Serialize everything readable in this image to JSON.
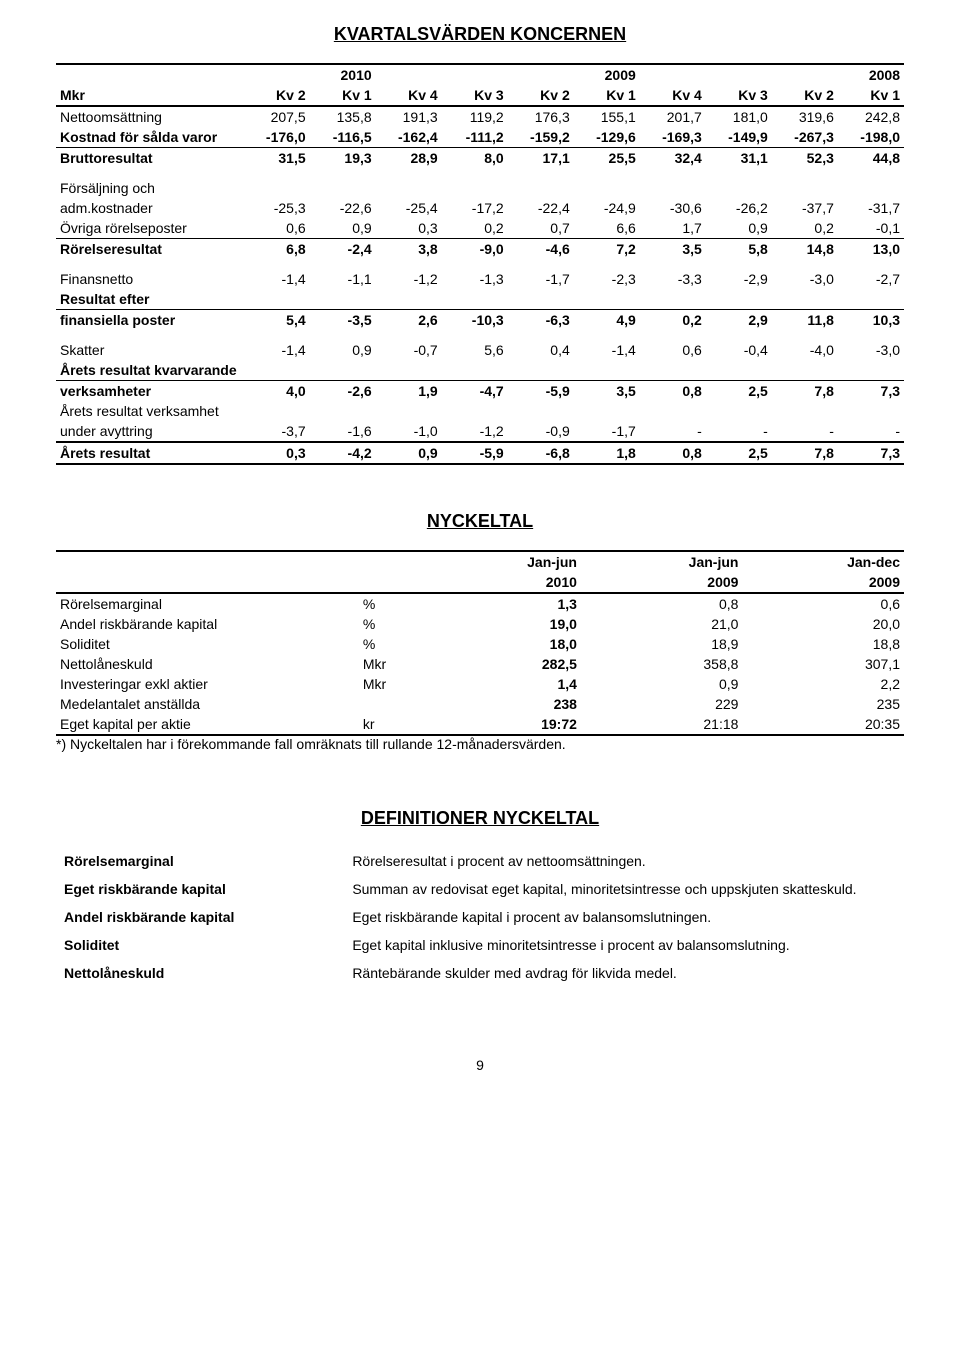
{
  "title1": "KVARTALSVÄRDEN KONCERNEN",
  "title2": "NYCKELTAL",
  "title3": "DEFINITIONER NYCKELTAL",
  "pagenum": "9",
  "t1": {
    "yearheads": [
      "2010",
      "2009",
      "2008"
    ],
    "colheads": [
      "Mkr",
      "Kv 2",
      "Kv 1",
      "Kv 4",
      "Kv 3",
      "Kv 2",
      "Kv 1",
      "Kv 4",
      "Kv 3",
      "Kv 2",
      "Kv 1"
    ],
    "rows": [
      {
        "label": "Nettoomsättning",
        "v": [
          "207,5",
          "135,8",
          "191,3",
          "119,2",
          "176,3",
          "155,1",
          "201,7",
          "181,0",
          "319,6",
          "242,8"
        ],
        "style": ""
      },
      {
        "label": "Kostnad för sålda varor",
        "v": [
          "-176,0",
          "-116,5",
          "-162,4",
          "-111,2",
          "-159,2",
          "-129,6",
          "-169,3",
          "-149,9",
          "-267,3",
          "-198,0"
        ],
        "style": "bold"
      },
      {
        "label": "Bruttoresultat",
        "v": [
          "31,5",
          "19,3",
          "28,9",
          "8,0",
          "17,1",
          "25,5",
          "32,4",
          "31,1",
          "52,3",
          "44,8"
        ],
        "style": "bold top"
      },
      {
        "label": "Försäljning och",
        "v": [
          "",
          "",
          "",
          "",
          "",
          "",
          "",
          "",
          "",
          ""
        ],
        "style": "gap"
      },
      {
        "label": "adm.kostnader",
        "v": [
          "-25,3",
          "-22,6",
          "-25,4",
          "-17,2",
          "-22,4",
          "-24,9",
          "-30,6",
          "-26,2",
          "-37,7",
          "-31,7"
        ],
        "style": ""
      },
      {
        "label": "Övriga rörelseposter",
        "v": [
          "0,6",
          "0,9",
          "0,3",
          "0,2",
          "0,7",
          "6,6",
          "1,7",
          "0,9",
          "0,2",
          "-0,1"
        ],
        "style": ""
      },
      {
        "label": "Rörelseresultat",
        "v": [
          "6,8",
          "-2,4",
          "3,8",
          "-9,0",
          "-4,6",
          "7,2",
          "3,5",
          "5,8",
          "14,8",
          "13,0"
        ],
        "style": "bold top"
      },
      {
        "label": "Finansnetto",
        "v": [
          "-1,4",
          "-1,1",
          "-1,2",
          "-1,3",
          "-1,7",
          "-2,3",
          "-3,3",
          "-2,9",
          "-3,0",
          "-2,7"
        ],
        "style": "gap"
      },
      {
        "label": "Resultat efter",
        "v": [
          "",
          "",
          "",
          "",
          "",
          "",
          "",
          "",
          "",
          ""
        ],
        "style": "bold"
      },
      {
        "label": "finansiella poster",
        "v": [
          "5,4",
          "-3,5",
          "2,6",
          "-10,3",
          "-6,3",
          "4,9",
          "0,2",
          "2,9",
          "11,8",
          "10,3"
        ],
        "style": "bold top"
      },
      {
        "label": "Skatter",
        "v": [
          "-1,4",
          "0,9",
          "-0,7",
          "5,6",
          "0,4",
          "-1,4",
          "0,6",
          "-0,4",
          "-4,0",
          "-3,0"
        ],
        "style": "gap"
      },
      {
        "label": "Årets resultat kvarvarande",
        "v": [
          "",
          "",
          "",
          "",
          "",
          "",
          "",
          "",
          "",
          ""
        ],
        "style": "bold"
      },
      {
        "label": "verksamheter",
        "v": [
          "4,0",
          "-2,6",
          "1,9",
          "-4,7",
          "-5,9",
          "3,5",
          "0,8",
          "2,5",
          "7,8",
          "7,3"
        ],
        "style": "bold top"
      },
      {
        "label": "Årets resultat verksamhet",
        "v": [
          "",
          "",
          "",
          "",
          "",
          "",
          "",
          "",
          "",
          ""
        ],
        "style": ""
      },
      {
        "label": "under avyttring",
        "v": [
          "-3,7",
          "-1,6",
          "-1,0",
          "-1,2",
          "-0,9",
          "-1,7",
          "-",
          "-",
          "-",
          "-"
        ],
        "style": ""
      },
      {
        "label": "Årets resultat",
        "v": [
          "0,3",
          "-4,2",
          "0,9",
          "-5,9",
          "-6,8",
          "1,8",
          "0,8",
          "2,5",
          "7,8",
          "7,3"
        ],
        "style": "bold heavyTopBottom"
      }
    ]
  },
  "t2": {
    "periodheads": [
      "",
      "",
      "Jan-jun",
      "Jan-jun",
      "Jan-dec"
    ],
    "yearheads": [
      "",
      "",
      "2010",
      "2009",
      "2009"
    ],
    "rows": [
      {
        "label": "Rörelsemarginal",
        "unit": "%",
        "v": [
          "1,3",
          "0,8",
          "0,6"
        ]
      },
      {
        "label": "Andel riskbärande kapital",
        "unit": "%",
        "v": [
          "19,0",
          "21,0",
          "20,0"
        ]
      },
      {
        "label": "Soliditet",
        "unit": "%",
        "v": [
          "18,0",
          "18,9",
          "18,8"
        ]
      },
      {
        "label": "Nettolåneskuld",
        "unit": "Mkr",
        "v": [
          "282,5",
          "358,8",
          "307,1"
        ]
      },
      {
        "label": "Investeringar exkl aktier",
        "unit": "Mkr",
        "v": [
          "1,4",
          "0,9",
          "2,2"
        ]
      },
      {
        "label": "Medelantalet anställda",
        "unit": "",
        "v": [
          "238",
          "229",
          "235"
        ]
      },
      {
        "label": "Eget kapital per aktie",
        "unit": "kr",
        "v": [
          "19:72",
          "21:18",
          "20:35"
        ]
      }
    ],
    "footnote": "*) Nyckeltalen har i förekommande fall omräknats till rullande 12-månadersvärden."
  },
  "defs": [
    {
      "term": "Rörelsemarginal",
      "text": "Rörelseresultat i procent av nettoomsättningen."
    },
    {
      "term": "Eget riskbärande kapital",
      "text": "Summan av redovisat eget kapital, minoritetsintresse och uppskjuten skatteskuld."
    },
    {
      "term": "Andel riskbärande kapital",
      "text": "Eget riskbärande kapital i procent av balansomslutningen."
    },
    {
      "term": "Soliditet",
      "text": "Eget kapital inklusive minoritetsintresse i procent av balansomslutning."
    },
    {
      "term": "Nettolåneskuld",
      "text": "Räntebärande skulder med avdrag för likvida medel."
    }
  ]
}
